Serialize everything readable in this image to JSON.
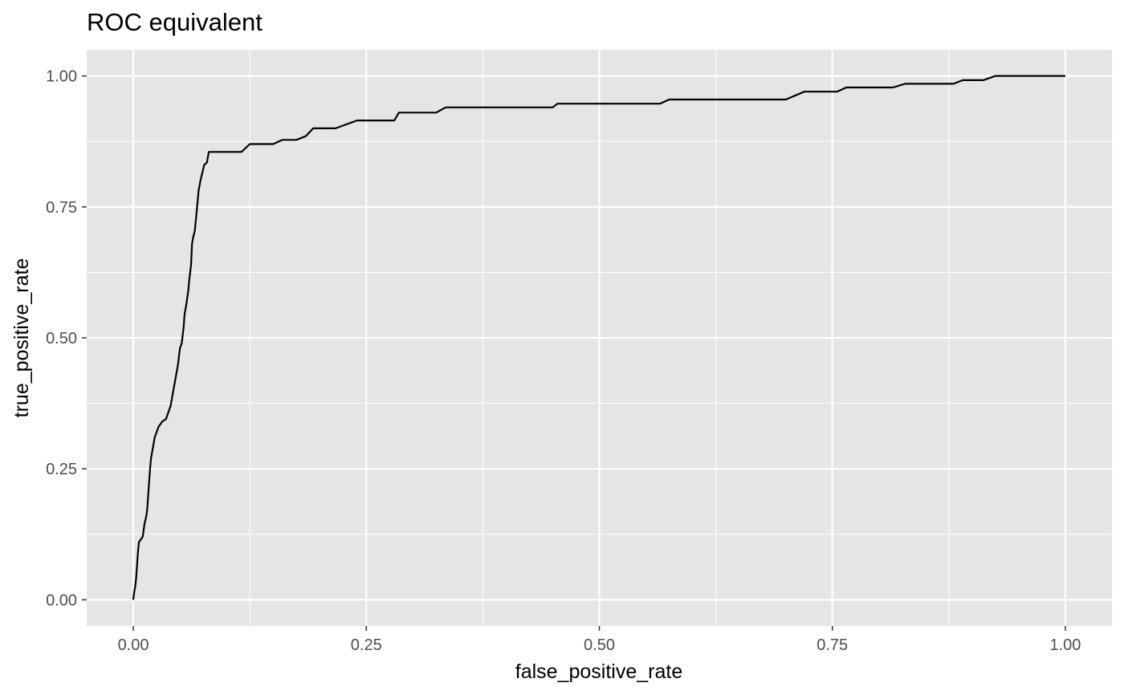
{
  "colors": {
    "panel_background": "#e5e5e5",
    "gridline": "#ffffff",
    "line": "#000000",
    "tick_label": "#4d4d4d",
    "text": "#000000"
  },
  "chart_data": {
    "type": "line",
    "title": "ROC equivalent",
    "xlabel": "false_positive_rate",
    "ylabel": "true_positive_rate",
    "xlim": [
      -0.05,
      1.05
    ],
    "ylim": [
      -0.05,
      1.05
    ],
    "x_ticks": [
      0,
      0.25,
      0.5,
      0.75,
      1
    ],
    "x_tick_labels": [
      "0.00",
      "0.25",
      "0.50",
      "0.75",
      "1.00"
    ],
    "y_ticks": [
      0,
      0.25,
      0.5,
      0.75,
      1
    ],
    "y_tick_labels": [
      "0.00",
      "0.25",
      "0.50",
      "0.75",
      "1.00"
    ],
    "grid": true,
    "legend": "none",
    "series": [
      {
        "x": [
          0,
          0.001,
          0.002,
          0.003,
          0.005,
          0.006,
          0.008,
          0.01,
          0.012,
          0.014,
          0.015,
          0.016,
          0.018,
          0.019,
          0.023,
          0.027,
          0.031,
          0.035,
          0.039,
          0.04,
          0.042,
          0.045,
          0.048,
          0.05,
          0.052,
          0.054,
          0.055,
          0.057,
          0.059,
          0.06,
          0.062,
          0.063,
          0.064,
          0.066,
          0.069,
          0.07,
          0.071,
          0.072,
          0.074,
          0.076,
          0.079,
          0.08,
          0.081,
          0.083,
          0.116,
          0.125,
          0.15,
          0.16,
          0.175,
          0.185,
          0.193,
          0.217,
          0.24,
          0.28,
          0.285,
          0.325,
          0.335,
          0.45,
          0.455,
          0.565,
          0.575,
          0.7,
          0.72,
          0.755,
          0.765,
          0.815,
          0.828,
          0.88,
          0.89,
          0.912,
          0.925,
          1
        ],
        "y": [
          0,
          0.015,
          0.025,
          0.04,
          0.09,
          0.11,
          0.115,
          0.12,
          0.145,
          0.16,
          0.175,
          0.2,
          0.25,
          0.27,
          0.31,
          0.33,
          0.34,
          0.345,
          0.365,
          0.37,
          0.39,
          0.42,
          0.45,
          0.48,
          0.49,
          0.52,
          0.545,
          0.565,
          0.59,
          0.61,
          0.64,
          0.68,
          0.69,
          0.705,
          0.76,
          0.78,
          0.79,
          0.8,
          0.815,
          0.83,
          0.835,
          0.845,
          0.855,
          0.855,
          0.855,
          0.87,
          0.87,
          0.878,
          0.878,
          0.885,
          0.9,
          0.9,
          0.915,
          0.915,
          0.93,
          0.93,
          0.94,
          0.94,
          0.947,
          0.947,
          0.955,
          0.955,
          0.97,
          0.97,
          0.978,
          0.978,
          0.985,
          0.985,
          0.992,
          0.992,
          1,
          1
        ]
      }
    ]
  }
}
